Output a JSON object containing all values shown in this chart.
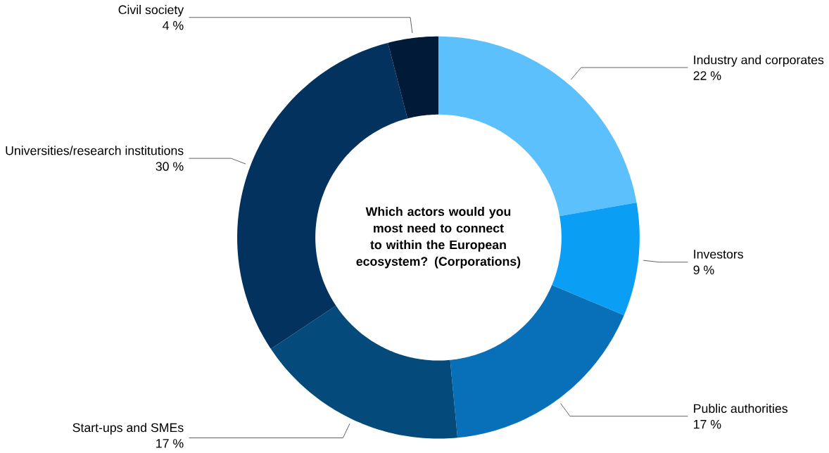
{
  "chart_data": {
    "type": "donut",
    "title": "Which actors would you most need to connect to within the European ecosystem? (Corporations)",
    "categories": [
      "Industry and corporates",
      "Investors",
      "Public authorities",
      "Start-ups and SMEs",
      "Universities/research institutions",
      "Civil society"
    ],
    "values": [
      22,
      9,
      17,
      17,
      30,
      4
    ],
    "value_labels": [
      "22 %",
      "9 %",
      "17 %",
      "17 %",
      "30 %",
      "4 %"
    ],
    "colors": [
      "#5bc0fb",
      "#0a9ff5",
      "#0870b8",
      "#044a7a",
      "#02325d",
      "#011a38"
    ]
  }
}
